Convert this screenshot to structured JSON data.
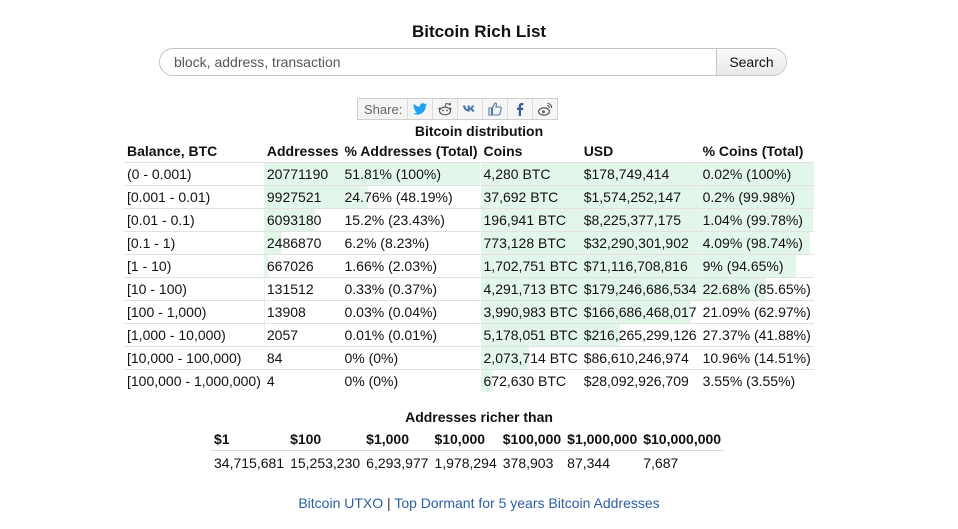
{
  "page": {
    "title": "Bitcoin Rich List"
  },
  "search": {
    "placeholder": "block, address, transaction",
    "button_label": "Search"
  },
  "share": {
    "label": "Share:"
  },
  "colors": {
    "bar": "#e3f6ea",
    "link": "#2a5fa8"
  },
  "distribution": {
    "caption": "Bitcoin distribution",
    "headers": [
      "Balance, BTC",
      "Addresses",
      "% Addresses (Total)",
      "Coins",
      "USD",
      "% Coins (Total)"
    ],
    "rows": [
      {
        "balance": "(0 - 0.001)",
        "addresses": "20771190",
        "pct_addresses": "51.81% (100%)",
        "coins": "4,280 BTC",
        "usd": "$178,749,414",
        "pct_coins": "0.02% (100%)",
        "addr_fill": 1.0,
        "coin_fill": 1.0
      },
      {
        "balance": "[0.001 - 0.01)",
        "addresses": "9927521",
        "pct_addresses": "24.76% (48.19%)",
        "coins": "37,692 BTC",
        "usd": "$1,574,252,147",
        "pct_coins": "0.2% (99.98%)",
        "addr_fill": 0.4819,
        "coin_fill": 0.9998
      },
      {
        "balance": "[0.01 - 0.1)",
        "addresses": "6093180",
        "pct_addresses": "15.2% (23.43%)",
        "coins": "196,941 BTC",
        "usd": "$8,225,377,175",
        "pct_coins": "1.04% (99.78%)",
        "addr_fill": 0.2343,
        "coin_fill": 0.9978
      },
      {
        "balance": "[0.1 - 1)",
        "addresses": "2486870",
        "pct_addresses": "6.2% (8.23%)",
        "coins": "773,128 BTC",
        "usd": "$32,290,301,902",
        "pct_coins": "4.09% (98.74%)",
        "addr_fill": 0.0823,
        "coin_fill": 0.9874
      },
      {
        "balance": "[1 - 10)",
        "addresses": "667026",
        "pct_addresses": "1.66% (2.03%)",
        "coins": "1,702,751 BTC",
        "usd": "$71,116,708,816",
        "pct_coins": "9% (94.65%)",
        "addr_fill": 0.0203,
        "coin_fill": 0.9465
      },
      {
        "balance": "[10 - 100)",
        "addresses": "131512",
        "pct_addresses": "0.33% (0.37%)",
        "coins": "4,291,713 BTC",
        "usd": "$179,246,686,534",
        "pct_coins": "22.68% (85.65%)",
        "addr_fill": 0.0037,
        "coin_fill": 0.8565
      },
      {
        "balance": "[100 - 1,000)",
        "addresses": "13908",
        "pct_addresses": "0.03% (0.04%)",
        "coins": "3,990,983 BTC",
        "usd": "$166,686,468,017",
        "pct_coins": "21.09% (62.97%)",
        "addr_fill": 0.0004,
        "coin_fill": 0.6297
      },
      {
        "balance": "[1,000 - 10,000)",
        "addresses": "2057",
        "pct_addresses": "0.01% (0.01%)",
        "coins": "5,178,051 BTC",
        "usd": "$216,265,299,126",
        "pct_coins": "27.37% (41.88%)",
        "addr_fill": 0.0001,
        "coin_fill": 0.4188
      },
      {
        "balance": "[10,000 - 100,000)",
        "addresses": "84",
        "pct_addresses": "0% (0%)",
        "coins": "2,073,714 BTC",
        "usd": "$86,610,246,974",
        "pct_coins": "10.96% (14.51%)",
        "addr_fill": 0,
        "coin_fill": 0.1451
      },
      {
        "balance": "[100,000 - 1,000,000)",
        "addresses": "4",
        "pct_addresses": "0% (0%)",
        "coins": "672,630 BTC",
        "usd": "$28,092,926,709",
        "pct_coins": "3.55% (3.55%)",
        "addr_fill": 0,
        "coin_fill": 0.0355
      }
    ]
  },
  "richer_than": {
    "caption": "Addresses richer than",
    "headers": [
      "$1",
      "$100",
      "$1,000",
      "$10,000",
      "$100,000",
      "$1,000,000",
      "$10,000,000"
    ],
    "values": [
      "34,715,681",
      "15,253,230",
      "6,293,977",
      "1,978,294",
      "378,903",
      "87,344",
      "7,687"
    ]
  },
  "footer": {
    "link1": "Bitcoin UTXO",
    "separator": " | ",
    "link2": "Top Dormant for 5 years Bitcoin Addresses"
  }
}
